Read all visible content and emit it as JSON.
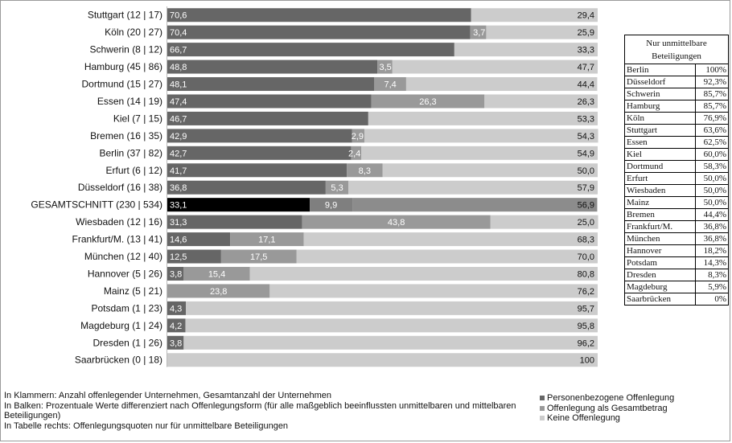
{
  "chart_data": {
    "type": "bar",
    "stacked": true,
    "orientation": "horizontal",
    "xlim": [
      0,
      100
    ],
    "categories": [
      "Stuttgart (12 | 17)",
      "Köln (20 | 27)",
      "Schwerin (8 | 12)",
      "Hamburg (45 | 86)",
      "Dortmund (15 | 27)",
      "Essen (14 | 19)",
      "Kiel (7 | 15)",
      "Bremen (16 | 35)",
      "Berlin  (37 | 82)",
      "Erfurt (6 | 12)",
      "Düsseldorf (16 | 38)",
      "GESAMTSCHNITT (230 | 534)",
      "Wiesbaden (12 | 16)",
      "Frankfurt/M. (13 | 41)",
      "München (12 | 40)",
      "Hannover  (5 | 26)",
      "Mainz (5 | 21)",
      "Potsdam (1 | 23)",
      "Magdeburg (1 | 24)",
      "Dresden (1 | 26)",
      "Saarbrücken (0 | 18)"
    ],
    "highlight_category": "GESAMTSCHNITT (230 | 534)",
    "series": [
      {
        "name": "Personenbezogene Offenlegung",
        "color": "#666666",
        "values": [
          70.6,
          70.4,
          66.7,
          48.8,
          48.1,
          47.4,
          46.7,
          42.9,
          42.7,
          41.7,
          36.8,
          33.1,
          31.3,
          14.6,
          12.5,
          3.8,
          0,
          4.3,
          4.2,
          3.8,
          0
        ],
        "labels": [
          "70,6",
          "70,4",
          "66,7",
          "48,8",
          "48,1",
          "47,4",
          "46,7",
          "42,9",
          "42,7",
          "41,7",
          "36,8",
          "33,1",
          "31,3",
          "14,6",
          "12,5",
          "3,8",
          "",
          "4,3",
          "4,2",
          "3,8",
          ""
        ]
      },
      {
        "name": "Offenlegung als Gesamtbetrag",
        "color": "#999999",
        "values": [
          0,
          3.7,
          0,
          3.5,
          7.4,
          26.3,
          0,
          2.9,
          2.4,
          8.3,
          5.3,
          9.9,
          43.8,
          17.1,
          17.5,
          15.4,
          23.8,
          0,
          0,
          0,
          0
        ],
        "labels": [
          "",
          "3,7",
          "",
          "3,5",
          "7,4",
          "26,3",
          "",
          "2,9",
          "2,4",
          "8,3",
          "5,3",
          "9,9",
          "43,8",
          "17,1",
          "17,5",
          "15,4",
          "23,8",
          "",
          "",
          "",
          ""
        ]
      },
      {
        "name": "Keine Offenlegung",
        "color": "#cccccc",
        "values": [
          29.4,
          25.9,
          33.3,
          47.7,
          44.4,
          26.3,
          53.3,
          54.3,
          54.9,
          50.0,
          57.9,
          56.9,
          25.0,
          68.3,
          70.0,
          80.8,
          76.2,
          95.7,
          95.8,
          96.2,
          100
        ],
        "labels": [
          "29,4",
          "25,9",
          "33,3",
          "47,7",
          "44,4",
          "26,3",
          "53,3",
          "54,3",
          "54,9",
          "50,0",
          "57,9",
          "56,9",
          "25,0",
          "68,3",
          "70,0",
          "80,8",
          "76,2",
          "95,7",
          "95,8",
          "96,2",
          "100"
        ]
      }
    ],
    "legend_position": "bottom-right"
  },
  "side_table": {
    "title": "Nur unmittelbare Beteiligungen",
    "rows": [
      {
        "city": "Berlin",
        "value": "100%"
      },
      {
        "city": "Düsseldorf",
        "value": "92,3%"
      },
      {
        "city": "Schwerin",
        "value": "85,7%"
      },
      {
        "city": "Hamburg",
        "value": "85,7%"
      },
      {
        "city": "Köln",
        "value": "76,9%"
      },
      {
        "city": "Stuttgart",
        "value": "63,6%"
      },
      {
        "city": "Essen",
        "value": "62,5%"
      },
      {
        "city": "Kiel",
        "value": "60,0%"
      },
      {
        "city": "Dortmund",
        "value": "58,3%"
      },
      {
        "city": "Erfurt",
        "value": "50,0%"
      },
      {
        "city": "Wiesbaden",
        "value": "50,0%"
      },
      {
        "city": "Mainz",
        "value": "50,0%"
      },
      {
        "city": "Bremen",
        "value": "44,4%"
      },
      {
        "city": "Frankfurt/M.",
        "value": "36,8%"
      },
      {
        "city": "München",
        "value": "36,8%"
      },
      {
        "city": "Hannover",
        "value": "18,2%"
      },
      {
        "city": "Potsdam",
        "value": "14,3%"
      },
      {
        "city": "Dresden",
        "value": "8,3%"
      },
      {
        "city": "Magdeburg",
        "value": "5,9%"
      },
      {
        "city": "Saarbrücken",
        "value": "0%"
      }
    ]
  },
  "notes": {
    "line1": "In Klammern: Anzahl offenlegender Unternehmen, Gesamtanzahl der Unternehmen",
    "line2": "In Balken: Prozentuale Werte differenziert nach Offenlegungsform (für alle maßgeblich beeinflussten unmittelbaren und mittelbaren Beteiligungen)",
    "line3": "In Tabelle rechts: Offenlegungsquoten nur für unmittelbare Beteiligungen"
  },
  "legend": {
    "items": [
      {
        "label": "Personenbezogene Offenlegung",
        "color": "#666666"
      },
      {
        "label": "Offenlegung als Gesamtbetrag",
        "color": "#999999"
      },
      {
        "label": "Keine Offenlegung",
        "color": "#cccccc"
      }
    ]
  }
}
